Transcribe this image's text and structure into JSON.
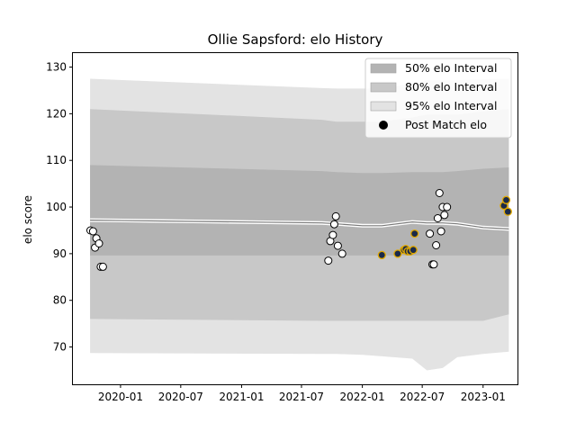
{
  "chart_data": {
    "type": "scatter",
    "title": "Ollie Sapsford: elo History",
    "xlabel": "",
    "ylabel": "elo score",
    "xlim": [
      "2019-08-10",
      "2023-04-15"
    ],
    "ylim": [
      62,
      133
    ],
    "x_ticks": [
      "2020-01",
      "2020-07",
      "2021-01",
      "2021-07",
      "2022-01",
      "2022-07",
      "2023-01"
    ],
    "y_ticks": [
      70,
      80,
      90,
      100,
      110,
      120,
      130
    ],
    "grid": false,
    "legend_position": "top-right",
    "legend": [
      {
        "label": "50% elo Interval",
        "color": "#b3b3b3"
      },
      {
        "label": "80% elo Interval",
        "color": "#c8c8c8"
      },
      {
        "label": "95% elo Interval",
        "color": "#e3e3e3"
      },
      {
        "label": "Post Match elo",
        "color": "#000000"
      }
    ],
    "bands": {
      "x": [
        "2019-10-01",
        "2021-09-01",
        "2021-10-15",
        "2022-01-01",
        "2022-03-01",
        "2022-06-01",
        "2022-07-15",
        "2022-09-01",
        "2022-10-15",
        "2023-01-01",
        "2023-03-20"
      ],
      "median": [
        97.2,
        96.6,
        96.4,
        96.0,
        96.0,
        96.8,
        96.6,
        96.6,
        96.4,
        95.6,
        95.3
      ],
      "p50": {
        "upper": [
          109,
          107.7,
          107.5,
          107.3,
          107.3,
          107.5,
          107.5,
          107.5,
          107.7,
          108.2,
          108.5
        ],
        "lower": [
          89.6,
          89.6,
          89.6,
          89.6,
          89.6,
          89.6,
          89.6,
          89.6,
          89.6,
          89.6,
          89.6
        ]
      },
      "p80": {
        "upper": [
          121,
          118.7,
          118.3,
          118.3,
          118.3,
          119.2,
          119.8,
          119.8,
          119.8,
          120.5,
          121
        ],
        "lower": [
          76,
          75.6,
          75.6,
          75.6,
          75.6,
          75.6,
          75.6,
          75.6,
          75.6,
          75.6,
          77
        ]
      },
      "p95": {
        "upper": [
          127.5,
          125.5,
          125.4,
          125.4,
          125.4,
          126.5,
          127.2,
          127.2,
          127.2,
          127.4,
          127.5
        ],
        "lower": [
          68.7,
          68.5,
          68.5,
          68.3,
          68.0,
          67.5,
          65.0,
          65.5,
          67.8,
          68.5,
          69.0
        ]
      }
    },
    "series": [
      {
        "name": "Post Match elo",
        "points": [
          {
            "x": "2019-10-02",
            "y": 95.0,
            "highlight": false
          },
          {
            "x": "2019-10-10",
            "y": 94.8,
            "highlight": false
          },
          {
            "x": "2019-10-16",
            "y": 91.3,
            "highlight": false
          },
          {
            "x": "2019-10-20",
            "y": 93.3,
            "highlight": false
          },
          {
            "x": "2019-10-28",
            "y": 92.2,
            "highlight": false
          },
          {
            "x": "2019-11-02",
            "y": 87.2,
            "highlight": false
          },
          {
            "x": "2019-11-09",
            "y": 87.2,
            "highlight": false
          },
          {
            "x": "2021-09-20",
            "y": 88.5,
            "highlight": false
          },
          {
            "x": "2021-09-26",
            "y": 92.7,
            "highlight": false
          },
          {
            "x": "2021-10-04",
            "y": 94.0,
            "highlight": false
          },
          {
            "x": "2021-10-08",
            "y": 96.3,
            "highlight": false
          },
          {
            "x": "2021-10-13",
            "y": 98.0,
            "highlight": false
          },
          {
            "x": "2021-10-19",
            "y": 91.7,
            "highlight": false
          },
          {
            "x": "2021-11-01",
            "y": 90.0,
            "highlight": false
          },
          {
            "x": "2022-03-01",
            "y": 89.7,
            "highlight": true
          },
          {
            "x": "2022-04-18",
            "y": 90.0,
            "highlight": true
          },
          {
            "x": "2022-05-07",
            "y": 90.8,
            "highlight": true
          },
          {
            "x": "2022-05-12",
            "y": 91.0,
            "highlight": true
          },
          {
            "x": "2022-05-18",
            "y": 90.5,
            "highlight": true
          },
          {
            "x": "2022-05-26",
            "y": 90.5,
            "highlight": true
          },
          {
            "x": "2022-06-04",
            "y": 90.8,
            "highlight": true
          },
          {
            "x": "2022-06-08",
            "y": 94.3,
            "highlight": true
          },
          {
            "x": "2022-07-24",
            "y": 94.3,
            "highlight": false
          },
          {
            "x": "2022-08-01",
            "y": 87.7,
            "highlight": false
          },
          {
            "x": "2022-08-05",
            "y": 87.7,
            "highlight": false
          },
          {
            "x": "2022-08-12",
            "y": 91.8,
            "highlight": false
          },
          {
            "x": "2022-08-17",
            "y": 97.6,
            "highlight": false
          },
          {
            "x": "2022-08-22",
            "y": 103.0,
            "highlight": false
          },
          {
            "x": "2022-08-27",
            "y": 94.8,
            "highlight": false
          },
          {
            "x": "2022-09-01",
            "y": 100.0,
            "highlight": false
          },
          {
            "x": "2022-09-06",
            "y": 98.3,
            "highlight": false
          },
          {
            "x": "2022-09-14",
            "y": 100.0,
            "highlight": false
          },
          {
            "x": "2023-03-05",
            "y": 100.3,
            "highlight": true
          },
          {
            "x": "2023-03-12",
            "y": 101.5,
            "highlight": true
          },
          {
            "x": "2023-03-17",
            "y": 99.0,
            "highlight": true
          }
        ]
      }
    ]
  }
}
